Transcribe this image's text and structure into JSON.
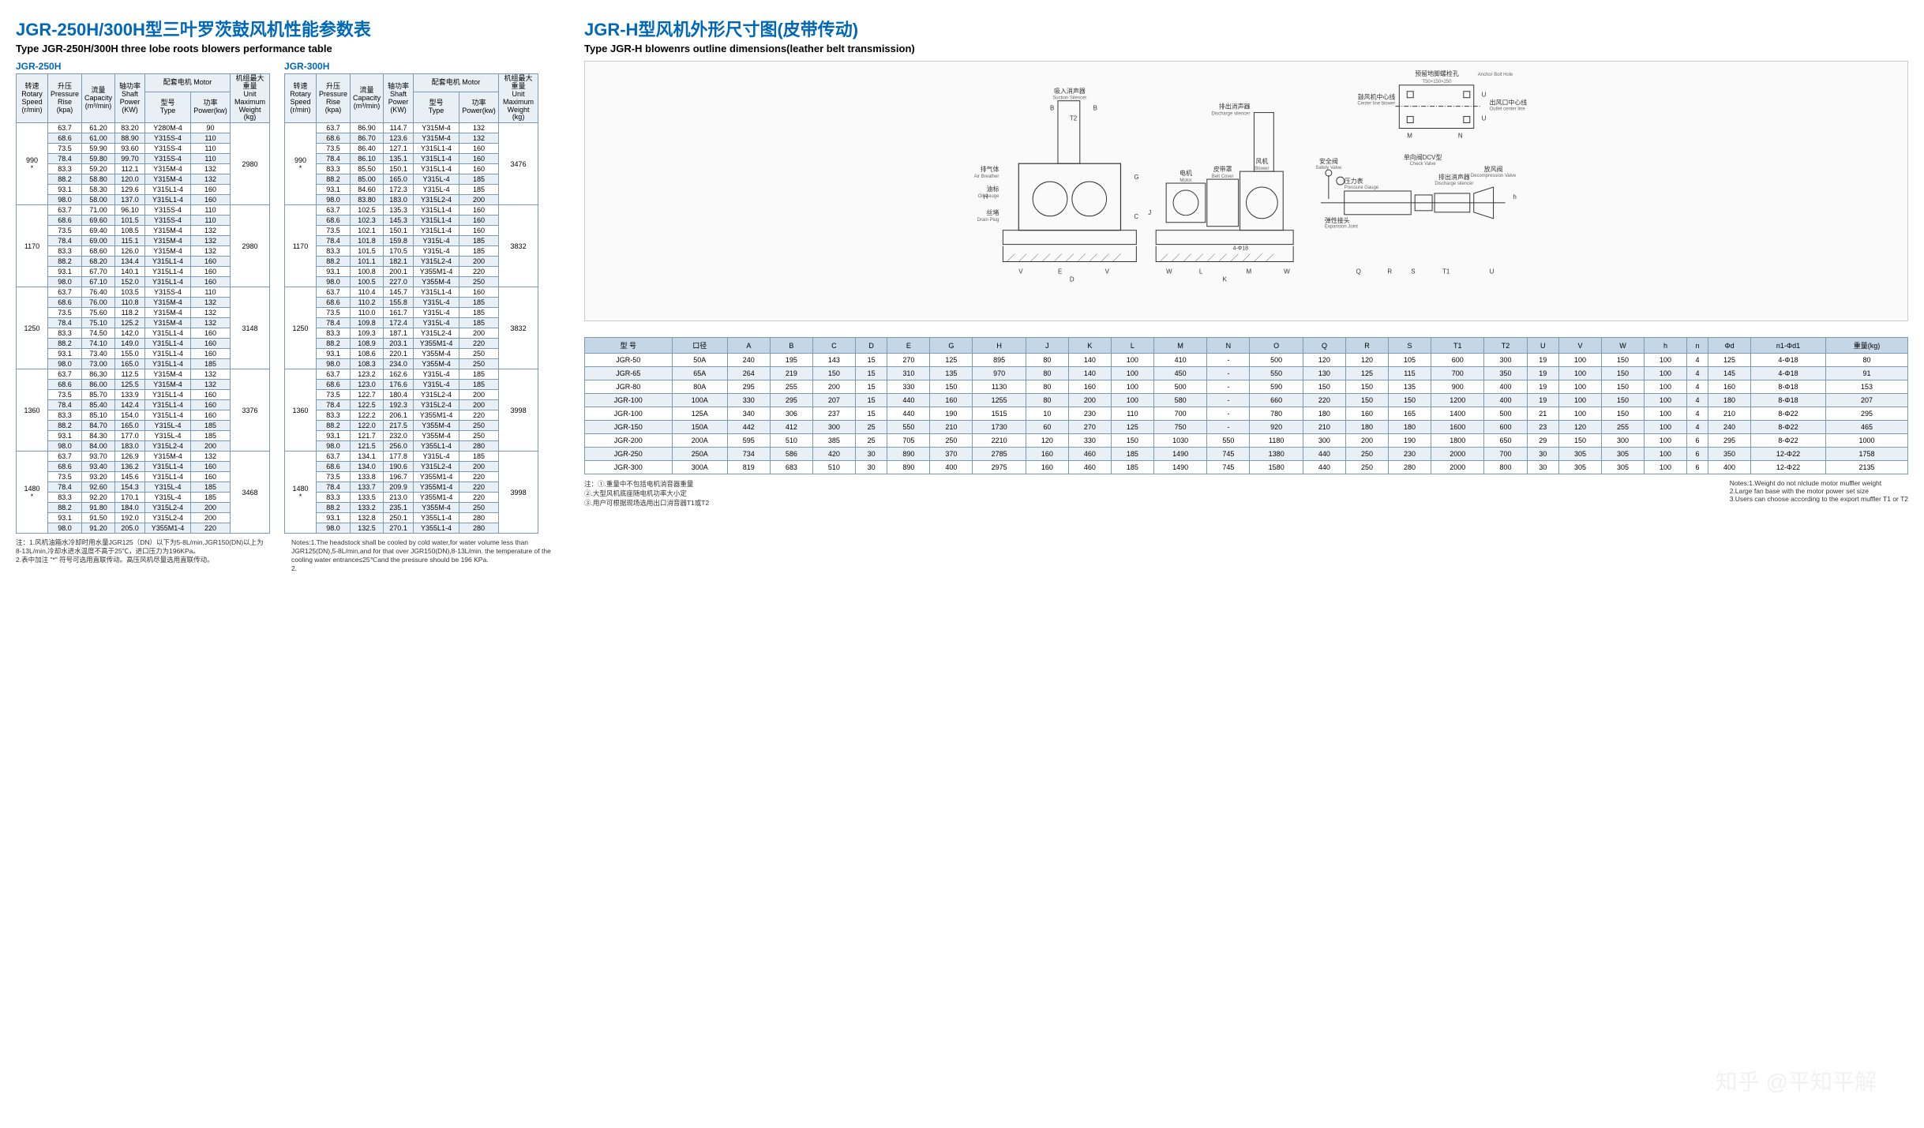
{
  "left": {
    "title_cn": "JGR-250H/300H型三叶罗茨鼓风机性能参数表",
    "title_en": "Type JGR-250H/300H three lobe roots blowers performance table",
    "model_a": "JGR-250H",
    "model_b": "JGR-300H",
    "headers": {
      "speed_cn": "转速",
      "speed_en1": "Rotary",
      "speed_en2": "Speed",
      "speed_unit": "(r/min)",
      "pressure_cn": "升压",
      "pressure_en1": "Pressure",
      "pressure_en2": "Rise",
      "pressure_unit": "(kpa)",
      "capacity_cn": "流量",
      "capacity_en": "Capacity",
      "capacity_unit": "(m³/min)",
      "shaft_cn": "轴功率",
      "shaft_en1": "Shaft",
      "shaft_en2": "Power",
      "shaft_unit": "(KW)",
      "motor_cn": "配套电机 Motor",
      "type_cn": "型号",
      "type_en": "Type",
      "power_cn": "功率",
      "power_en": "Power(kw)",
      "weight_cn": "机组最大重量",
      "weight_en1": "Unit Maximum",
      "weight_en2": "Weight",
      "weight_unit": "(kg)"
    },
    "groups_a": [
      {
        "speed": "990",
        "star": "*",
        "weight": "2980",
        "rows": [
          [
            "63.7",
            "61.20",
            "83.20",
            "Y280M-4",
            "90"
          ],
          [
            "68.6",
            "61.00",
            "88.90",
            "Y315S-4",
            "110"
          ],
          [
            "73.5",
            "59.90",
            "93.60",
            "Y315S-4",
            "110"
          ],
          [
            "78.4",
            "59.80",
            "99.70",
            "Y315S-4",
            "110"
          ],
          [
            "83.3",
            "59.20",
            "112.1",
            "Y315M-4",
            "132"
          ],
          [
            "88.2",
            "58.80",
            "120.0",
            "Y315M-4",
            "132"
          ],
          [
            "93.1",
            "58.30",
            "129.6",
            "Y315L1-4",
            "160"
          ],
          [
            "98.0",
            "58.00",
            "137.0",
            "Y315L1-4",
            "160"
          ]
        ]
      },
      {
        "speed": "1170",
        "star": "",
        "weight": "2980",
        "rows": [
          [
            "63.7",
            "71.00",
            "96.10",
            "Y315S-4",
            "110"
          ],
          [
            "68.6",
            "69.60",
            "101.5",
            "Y315S-4",
            "110"
          ],
          [
            "73.5",
            "69.40",
            "108.5",
            "Y315M-4",
            "132"
          ],
          [
            "78.4",
            "69.00",
            "115.1",
            "Y315M-4",
            "132"
          ],
          [
            "83.3",
            "68.60",
            "126.0",
            "Y315M-4",
            "132"
          ],
          [
            "88.2",
            "68.20",
            "134.4",
            "Y315L1-4",
            "160"
          ],
          [
            "93.1",
            "67.70",
            "140.1",
            "Y315L1-4",
            "160"
          ],
          [
            "98.0",
            "67.10",
            "152.0",
            "Y315L1-4",
            "160"
          ]
        ]
      },
      {
        "speed": "1250",
        "star": "",
        "weight": "3148",
        "rows": [
          [
            "63.7",
            "76.40",
            "103.5",
            "Y315S-4",
            "110"
          ],
          [
            "68.6",
            "76.00",
            "110.8",
            "Y315M-4",
            "132"
          ],
          [
            "73.5",
            "75.60",
            "118.2",
            "Y315M-4",
            "132"
          ],
          [
            "78.4",
            "75.10",
            "125.2",
            "Y315M-4",
            "132"
          ],
          [
            "83.3",
            "74.50",
            "142.0",
            "Y315L1-4",
            "160"
          ],
          [
            "88.2",
            "74.10",
            "149.0",
            "Y315L1-4",
            "160"
          ],
          [
            "93.1",
            "73.40",
            "155.0",
            "Y315L1-4",
            "160"
          ],
          [
            "98.0",
            "73.00",
            "165.0",
            "Y315L1-4",
            "185"
          ]
        ]
      },
      {
        "speed": "1360",
        "star": "",
        "weight": "3376",
        "rows": [
          [
            "63.7",
            "86.30",
            "112.5",
            "Y315M-4",
            "132"
          ],
          [
            "68.6",
            "86.00",
            "125.5",
            "Y315M-4",
            "132"
          ],
          [
            "73.5",
            "85.70",
            "133.9",
            "Y315L1-4",
            "160"
          ],
          [
            "78.4",
            "85.40",
            "142.4",
            "Y315L1-4",
            "160"
          ],
          [
            "83.3",
            "85.10",
            "154.0",
            "Y315L1-4",
            "160"
          ],
          [
            "88.2",
            "84.70",
            "165.0",
            "Y315L-4",
            "185"
          ],
          [
            "93.1",
            "84.30",
            "177.0",
            "Y315L-4",
            "185"
          ],
          [
            "98.0",
            "84.00",
            "183.0",
            "Y315L2-4",
            "200"
          ]
        ]
      },
      {
        "speed": "1480",
        "star": "*",
        "weight": "3468",
        "rows": [
          [
            "63.7",
            "93.70",
            "126.9",
            "Y315M-4",
            "132"
          ],
          [
            "68.6",
            "93.40",
            "136.2",
            "Y315L1-4",
            "160"
          ],
          [
            "73.5",
            "93.20",
            "145.6",
            "Y315L1-4",
            "160"
          ],
          [
            "78.4",
            "92.60",
            "154.3",
            "Y315L-4",
            "185"
          ],
          [
            "83.3",
            "92.20",
            "170.1",
            "Y315L-4",
            "185"
          ],
          [
            "88.2",
            "91.80",
            "184.0",
            "Y315L2-4",
            "200"
          ],
          [
            "93.1",
            "91.50",
            "192.0",
            "Y315L2-4",
            "200"
          ],
          [
            "98.0",
            "91.20",
            "205.0",
            "Y355M1-4",
            "220"
          ]
        ]
      }
    ],
    "groups_b": [
      {
        "speed": "990",
        "star": "*",
        "weight": "3476",
        "rows": [
          [
            "63.7",
            "86.90",
            "114.7",
            "Y315M-4",
            "132"
          ],
          [
            "68.6",
            "86.70",
            "123.6",
            "Y315M-4",
            "132"
          ],
          [
            "73.5",
            "86.40",
            "127.1",
            "Y315L1-4",
            "160"
          ],
          [
            "78.4",
            "86.10",
            "135.1",
            "Y315L1-4",
            "160"
          ],
          [
            "83.3",
            "85.50",
            "150.1",
            "Y315L1-4",
            "160"
          ],
          [
            "88.2",
            "85.00",
            "165.0",
            "Y315L-4",
            "185"
          ],
          [
            "93.1",
            "84.60",
            "172.3",
            "Y315L-4",
            "185"
          ],
          [
            "98.0",
            "83.80",
            "183.0",
            "Y315L2-4",
            "200"
          ]
        ]
      },
      {
        "speed": "1170",
        "star": "",
        "weight": "3832",
        "rows": [
          [
            "63.7",
            "102.5",
            "135.3",
            "Y315L1-4",
            "160"
          ],
          [
            "68.6",
            "102.3",
            "145.3",
            "Y315L1-4",
            "160"
          ],
          [
            "73.5",
            "102.1",
            "150.1",
            "Y315L1-4",
            "160"
          ],
          [
            "78.4",
            "101.8",
            "159.8",
            "Y315L-4",
            "185"
          ],
          [
            "83.3",
            "101.5",
            "170.5",
            "Y315L-4",
            "185"
          ],
          [
            "88.2",
            "101.1",
            "182.1",
            "Y315L2-4",
            "200"
          ],
          [
            "93.1",
            "100.8",
            "200.1",
            "Y355M1-4",
            "220"
          ],
          [
            "98.0",
            "100.5",
            "227.0",
            "Y355M-4",
            "250"
          ]
        ]
      },
      {
        "speed": "1250",
        "star": "",
        "weight": "3832",
        "rows": [
          [
            "63.7",
            "110.4",
            "145.7",
            "Y315L1-4",
            "160"
          ],
          [
            "68.6",
            "110.2",
            "155.8",
            "Y315L-4",
            "185"
          ],
          [
            "73.5",
            "110.0",
            "161.7",
            "Y315L-4",
            "185"
          ],
          [
            "78.4",
            "109.8",
            "172.4",
            "Y315L-4",
            "185"
          ],
          [
            "83.3",
            "109.3",
            "187.1",
            "Y315L2-4",
            "200"
          ],
          [
            "88.2",
            "108.9",
            "203.1",
            "Y355M1-4",
            "220"
          ],
          [
            "93.1",
            "108.6",
            "220.1",
            "Y355M-4",
            "250"
          ],
          [
            "98.0",
            "108.3",
            "234.0",
            "Y355M-4",
            "250"
          ]
        ]
      },
      {
        "speed": "1360",
        "star": "",
        "weight": "3998",
        "rows": [
          [
            "63.7",
            "123.2",
            "162.6",
            "Y315L-4",
            "185"
          ],
          [
            "68.6",
            "123.0",
            "176.6",
            "Y315L-4",
            "185"
          ],
          [
            "73.5",
            "122.7",
            "180.4",
            "Y315L2-4",
            "200"
          ],
          [
            "78.4",
            "122.5",
            "192.3",
            "Y315L2-4",
            "200"
          ],
          [
            "83.3",
            "122.2",
            "206.1",
            "Y355M1-4",
            "220"
          ],
          [
            "88.2",
            "122.0",
            "217.5",
            "Y355M-4",
            "250"
          ],
          [
            "93.1",
            "121.7",
            "232.0",
            "Y355M-4",
            "250"
          ],
          [
            "98.0",
            "121.5",
            "256.0",
            "Y355L1-4",
            "280"
          ]
        ]
      },
      {
        "speed": "1480",
        "star": "*",
        "weight": "3998",
        "rows": [
          [
            "63.7",
            "134.1",
            "177.8",
            "Y315L-4",
            "185"
          ],
          [
            "68.6",
            "134.0",
            "190.6",
            "Y315L2-4",
            "200"
          ],
          [
            "73.5",
            "133.8",
            "196.7",
            "Y355M1-4",
            "220"
          ],
          [
            "78.4",
            "133.7",
            "209.9",
            "Y355M1-4",
            "220"
          ],
          [
            "83.3",
            "133.5",
            "213.0",
            "Y355M1-4",
            "220"
          ],
          [
            "88.2",
            "133.2",
            "235.1",
            "Y355M-4",
            "250"
          ],
          [
            "93.1",
            "132.8",
            "250.1",
            "Y355L1-4",
            "280"
          ],
          [
            "98.0",
            "132.5",
            "270.1",
            "Y355L1-4",
            "280"
          ]
        ]
      }
    ],
    "note_cn": "注：1.风机油箱水冷却时用水量JGR125（DN）以下为5-8L/min,JGR150(DN)以上为\n8-13L/min,冷却水进水温度不高于25℃，进口压力为196KPa。\n2.表中加注 \"*\" 符号可选用直联传动。高压风机尽量选用直联传动。",
    "note_en": "Notes:1.The headstock shall be cooled by cold water,for water volume less than\nJGR125(DN),5-8L/min,and for that over JGR150(DN),8-13L/min. the temperature of the\ncooling water entrance≤25℃and the pressure should be 196 KPa.\n2."
  },
  "right": {
    "title_cn": "JGR-H型风机外形尺寸图(皮带传动)",
    "title_en": "Type JGR-H blowenrs outline dimensions(leather belt transmission)",
    "diagram_labels": {
      "suction": "吸入消声器",
      "suction_en": "Suction Silencer",
      "discharge": "排出消声器",
      "discharge_en": "Discharge silencer",
      "anchor": "预留地脚螺栓孔",
      "anchor_en": "Anchor Bolt Hole",
      "anchor_dim": "T50×150×250",
      "center": "鼓风机中心线",
      "center_en": "Center line blower",
      "outlet": "出风口中心线",
      "outlet_en": "Outlet center line",
      "air_breather": "排气体",
      "air_breather_en": "Air Breather",
      "oil": "油标",
      "oil_en": "Oil Gauge",
      "drain": "丝堵",
      "drain_en": "Drain Plug",
      "motor": "电机",
      "motor_en": "Motor",
      "belt": "皮带罩",
      "belt_en": "Belt Cover",
      "blower": "风机",
      "blower_en": "Blower",
      "safety": "安全阀",
      "safety_en": "Safety Valve",
      "pressure": "压力表",
      "pressure_en": "Pressure Gauge",
      "expansion": "弹性接头",
      "expansion_en": "Expansion Joint",
      "check": "单向阀DCV型",
      "check_en": "Check Valve",
      "decomp": "放风阀",
      "decomp_en": "Decompression Valve"
    },
    "dim_headers": [
      "型 号",
      "口径",
      "A",
      "B",
      "C",
      "D",
      "E",
      "G",
      "H",
      "J",
      "K",
      "L",
      "M",
      "N",
      "O",
      "Q",
      "R",
      "S",
      "T1",
      "T2",
      "U",
      "V",
      "W",
      "h",
      "n",
      "Φd",
      "n1-Φd1",
      "重量(kg)"
    ],
    "dim_rows": [
      [
        "JGR-50",
        "50A",
        "240",
        "195",
        "143",
        "15",
        "270",
        "125",
        "895",
        "80",
        "140",
        "100",
        "410",
        "-",
        "500",
        "120",
        "120",
        "105",
        "600",
        "300",
        "19",
        "100",
        "150",
        "100",
        "4",
        "125",
        "4-Φ18",
        "80"
      ],
      [
        "JGR-65",
        "65A",
        "264",
        "219",
        "150",
        "15",
        "310",
        "135",
        "970",
        "80",
        "140",
        "100",
        "450",
        "-",
        "550",
        "130",
        "125",
        "115",
        "700",
        "350",
        "19",
        "100",
        "150",
        "100",
        "4",
        "145",
        "4-Φ18",
        "91"
      ],
      [
        "JGR-80",
        "80A",
        "295",
        "255",
        "200",
        "15",
        "330",
        "150",
        "1130",
        "80",
        "160",
        "100",
        "500",
        "-",
        "590",
        "150",
        "150",
        "135",
        "900",
        "400",
        "19",
        "100",
        "150",
        "100",
        "4",
        "160",
        "8-Φ18",
        "153"
      ],
      [
        "JGR-100",
        "100A",
        "330",
        "295",
        "207",
        "15",
        "440",
        "160",
        "1255",
        "80",
        "200",
        "100",
        "580",
        "-",
        "660",
        "220",
        "150",
        "150",
        "1200",
        "400",
        "19",
        "100",
        "150",
        "100",
        "4",
        "180",
        "8-Φ18",
        "207"
      ],
      [
        "JGR-100",
        "125A",
        "340",
        "306",
        "237",
        "15",
        "440",
        "190",
        "1515",
        "10",
        "230",
        "110",
        "700",
        "-",
        "780",
        "180",
        "160",
        "165",
        "1400",
        "500",
        "21",
        "100",
        "150",
        "100",
        "4",
        "210",
        "8-Φ22",
        "295"
      ],
      [
        "JGR-150",
        "150A",
        "442",
        "412",
        "300",
        "25",
        "550",
        "210",
        "1730",
        "60",
        "270",
        "125",
        "750",
        "-",
        "920",
        "210",
        "180",
        "180",
        "1600",
        "600",
        "23",
        "120",
        "255",
        "100",
        "4",
        "240",
        "8-Φ22",
        "465"
      ],
      [
        "JGR-200",
        "200A",
        "595",
        "510",
        "385",
        "25",
        "705",
        "250",
        "2210",
        "120",
        "330",
        "150",
        "1030",
        "550",
        "1180",
        "300",
        "200",
        "190",
        "1800",
        "650",
        "29",
        "150",
        "300",
        "100",
        "6",
        "295",
        "8-Φ22",
        "1000"
      ],
      [
        "JGR-250",
        "250A",
        "734",
        "586",
        "420",
        "30",
        "890",
        "370",
        "2785",
        "160",
        "460",
        "185",
        "1490",
        "745",
        "1380",
        "440",
        "250",
        "230",
        "2000",
        "700",
        "30",
        "305",
        "305",
        "100",
        "6",
        "350",
        "12-Φ22",
        "1758"
      ],
      [
        "JGR-300",
        "300A",
        "819",
        "683",
        "510",
        "30",
        "890",
        "400",
        "2975",
        "160",
        "460",
        "185",
        "1490",
        "745",
        "1580",
        "440",
        "250",
        "280",
        "2000",
        "800",
        "30",
        "305",
        "305",
        "100",
        "6",
        "400",
        "12-Φ22",
        "2135"
      ]
    ],
    "note_cn": "注：①.重量中不包括电机消音器重量\n②.大型风机底座随电机功率大小定\n③.用户可根据现场选用出口消音器T1或T2",
    "note_en": "Notes:1.Weight do not nlclude motor muffler weight\n2.Large fan base with the motor power set size\n3.Users can choose according to the export muffler T1 or T2"
  },
  "watermark": "知乎 @平知平解"
}
